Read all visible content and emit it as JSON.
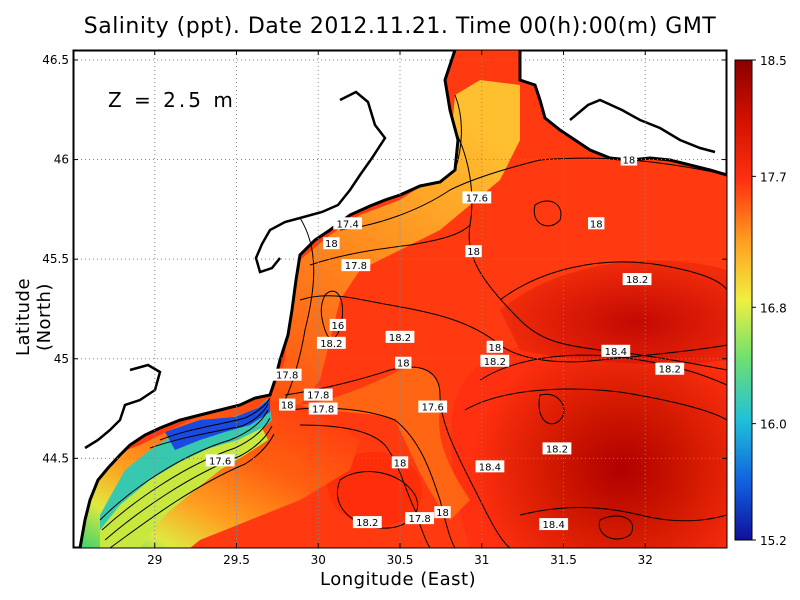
{
  "title": "Salinity (ppt). Date 2012.11.21. Time 00(h):00(m) GMT",
  "depth_label": "Z = 2.5 m",
  "colors": {
    "land": "#ffffff",
    "coast": "#000000",
    "fresh": "#1010a0",
    "low": "#20c0c0",
    "mid": "#f0f040",
    "high": "#ff3010",
    "max": "#8a0000"
  },
  "chart_data": {
    "type": "heatmap",
    "variable": "Salinity (ppt)",
    "date": "2012.11.21",
    "time": "00(h):00(m) GMT",
    "xlabel": "Longitude (East)",
    "ylabel": "Latitude (North)",
    "xlim": [
      28.5,
      32.5
    ],
    "ylim": [
      44.05,
      46.55
    ],
    "x_ticks": [
      29,
      29.5,
      30,
      30.5,
      31,
      31.5,
      32
    ],
    "y_ticks": [
      44.5,
      45,
      45.5,
      46,
      46.5
    ],
    "grid": true,
    "colorbar": {
      "position": "right",
      "ticks": [
        15.2,
        16.0,
        16.8,
        17.7,
        18.5
      ],
      "tick_labels": [
        "15.2",
        "16.0",
        "16.8",
        "17.7",
        "18.5"
      ],
      "colors": [
        "#10109a",
        "#1060e0",
        "#20c0d8",
        "#70e070",
        "#f0f040",
        "#ffa020",
        "#ff3010",
        "#d01000",
        "#8a0000"
      ]
    },
    "contour_labels": [
      {
        "text": "18",
        "lon": 31.9,
        "lat": 46.0
      },
      {
        "text": "17.6",
        "lon": 30.97,
        "lat": 45.81
      },
      {
        "text": "17.4",
        "lon": 30.18,
        "lat": 45.68
      },
      {
        "text": "18",
        "lon": 31.7,
        "lat": 45.68
      },
      {
        "text": "18",
        "lon": 30.08,
        "lat": 45.58
      },
      {
        "text": "18",
        "lon": 30.95,
        "lat": 45.54
      },
      {
        "text": "17.8",
        "lon": 30.23,
        "lat": 45.47
      },
      {
        "text": "18.2",
        "lon": 31.95,
        "lat": 45.4
      },
      {
        "text": "16",
        "lon": 30.12,
        "lat": 45.17
      },
      {
        "text": "18.2",
        "lon": 30.5,
        "lat": 45.11
      },
      {
        "text": "18.2",
        "lon": 30.08,
        "lat": 45.08
      },
      {
        "text": "18",
        "lon": 31.08,
        "lat": 45.06
      },
      {
        "text": "18.4",
        "lon": 31.82,
        "lat": 45.04
      },
      {
        "text": "18.2",
        "lon": 31.08,
        "lat": 44.99
      },
      {
        "text": "18",
        "lon": 30.52,
        "lat": 44.98
      },
      {
        "text": "18.2",
        "lon": 32.15,
        "lat": 44.95
      },
      {
        "text": "17.8",
        "lon": 29.81,
        "lat": 44.92
      },
      {
        "text": "17.8",
        "lon": 30,
        "lat": 44.82
      },
      {
        "text": "18",
        "lon": 29.81,
        "lat": 44.77
      },
      {
        "text": "17.8",
        "lon": 30.03,
        "lat": 44.75
      },
      {
        "text": "17.6",
        "lon": 30.7,
        "lat": 44.76
      },
      {
        "text": "18.2",
        "lon": 31.46,
        "lat": 44.55
      },
      {
        "text": "18",
        "lon": 30.5,
        "lat": 44.48
      },
      {
        "text": "18.4",
        "lon": 31.05,
        "lat": 44.46
      },
      {
        "text": "17.6",
        "lon": 29.4,
        "lat": 44.49
      },
      {
        "text": "18",
        "lon": 30.76,
        "lat": 44.23
      },
      {
        "text": "17.8",
        "lon": 30.62,
        "lat": 44.2
      },
      {
        "text": "18.2",
        "lon": 30.3,
        "lat": 44.18
      },
      {
        "text": "18.4",
        "lon": 31.44,
        "lat": 44.17
      }
    ]
  }
}
